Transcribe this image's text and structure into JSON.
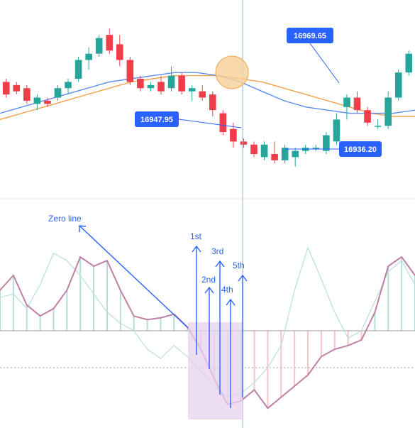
{
  "colors": {
    "up": "#26a69a",
    "down": "#ef3e4a",
    "ma_fast": "#5b8def",
    "ma_slow": "#f5a04d",
    "macd_line": "#c07fa6",
    "signal_line": "#b9e0d5",
    "hist_pos": "#b5ddd8",
    "hist_neg": "#f6c5c5",
    "annotation": "#2a62ff",
    "label_bg": "#2a62ff",
    "highlight_zone": "#e6d2ee",
    "crossover_circle": "#f8cf96",
    "crosshair": "#8fb3d9"
  },
  "annotations": {
    "zero_line": "Zero line",
    "waves": [
      "1st",
      "2nd",
      "3rd",
      "4th",
      "5th"
    ]
  },
  "chart_data": [
    {
      "type": "candlestick",
      "price_labels": [
        "16969.65",
        "16947.95",
        "16936.20"
      ],
      "ohlc": [
        [
          16960,
          16961,
          16955,
          16956
        ],
        [
          16959,
          16960,
          16956,
          16957
        ],
        [
          16958,
          16959,
          16953,
          16954
        ],
        [
          16953,
          16956,
          16951,
          16955
        ],
        [
          16954,
          16955,
          16952,
          16953
        ],
        [
          16955,
          16959,
          16954,
          16958
        ],
        [
          16958,
          16961,
          16956,
          16960
        ],
        [
          16961,
          16968,
          16960,
          16967
        ],
        [
          16967,
          16971,
          16964,
          16969
        ],
        [
          16969,
          16975,
          16968,
          16974
        ],
        [
          16975,
          16977,
          16969,
          16970
        ],
        [
          16972,
          16975,
          16965,
          16967
        ],
        [
          16967,
          16968,
          16959,
          16960
        ],
        [
          16961,
          16962,
          16957,
          16958
        ],
        [
          16958,
          16960,
          16957,
          16959
        ],
        [
          16960,
          16962,
          16956,
          16957
        ],
        [
          16958,
          16965,
          16957,
          16962
        ],
        [
          16962,
          16963,
          16956,
          16957
        ],
        [
          16957,
          16959,
          16954,
          16958
        ],
        [
          16957,
          16959,
          16954,
          16955
        ],
        [
          16956,
          16957,
          16949,
          16951
        ],
        [
          16950,
          16951,
          16943,
          16944
        ],
        [
          16945,
          16947,
          16939,
          16941
        ],
        [
          16941,
          16942,
          16939,
          16940
        ],
        [
          16940,
          16941,
          16936,
          16937
        ],
        [
          16936,
          16941,
          16935,
          16940
        ],
        [
          16937,
          16941,
          16934,
          16935
        ],
        [
          16935,
          16940,
          16934,
          16939
        ],
        [
          16936,
          16939,
          16933,
          16938
        ],
        [
          16938,
          16940,
          16937,
          16939
        ],
        [
          16939,
          16940,
          16938,
          16939
        ],
        [
          16938,
          16944,
          16937,
          16943
        ],
        [
          16941,
          16950,
          16940,
          16948
        ],
        [
          16952,
          16956,
          16948,
          16955
        ],
        [
          16955,
          16957,
          16950,
          16951
        ],
        [
          16951,
          16952,
          16946,
          16947
        ],
        [
          16946,
          16948,
          16945,
          16946
        ],
        [
          16946,
          16957,
          16945,
          16955
        ],
        [
          16955,
          16964,
          16954,
          16963
        ],
        [
          16963,
          16970,
          16962,
          16969
        ]
      ],
      "ma_fast": [
        16950,
        16952,
        16954,
        16956,
        16958,
        16960,
        16961,
        16962,
        16963,
        16963,
        16962,
        16960,
        16957,
        16954,
        16952,
        16951,
        16950,
        16950,
        16950,
        16951
      ],
      "ma_slow": [
        16948,
        16950,
        16952,
        16954,
        16956,
        16958,
        16960,
        16961,
        16962,
        16962,
        16962,
        16961,
        16960,
        16958,
        16956,
        16954,
        16952,
        16950,
        16949,
        16949
      ]
    },
    {
      "type": "line",
      "series": [
        {
          "values": [
            22,
            30,
            14,
            8,
            12,
            22,
            40,
            35,
            38,
            22,
            8,
            6,
            7,
            9,
            2,
            -10,
            -26,
            -40,
            -38,
            -32,
            -42,
            -36,
            -30,
            -24,
            -14,
            -10,
            -8,
            -5,
            10,
            35,
            40,
            30
          ]
        },
        {
          "values": [
            18,
            20,
            12,
            25,
            42,
            38,
            30,
            20,
            10,
            4,
            0,
            -10,
            -15,
            -8,
            -14,
            -22,
            -30,
            -36,
            -34,
            -28,
            -20,
            -8,
            22,
            45,
            28,
            10,
            -4,
            0,
            16,
            32,
            38,
            25
          ]
        }
      ],
      "histogram": [
        22,
        30,
        14,
        8,
        12,
        22,
        40,
        35,
        38,
        22,
        8,
        6,
        7,
        9,
        2,
        -10,
        -26,
        -40,
        -38,
        -32,
        -42,
        -36,
        -30,
        -24,
        -14,
        -10,
        -8,
        -5,
        10,
        35,
        40,
        30
      ]
    }
  ]
}
